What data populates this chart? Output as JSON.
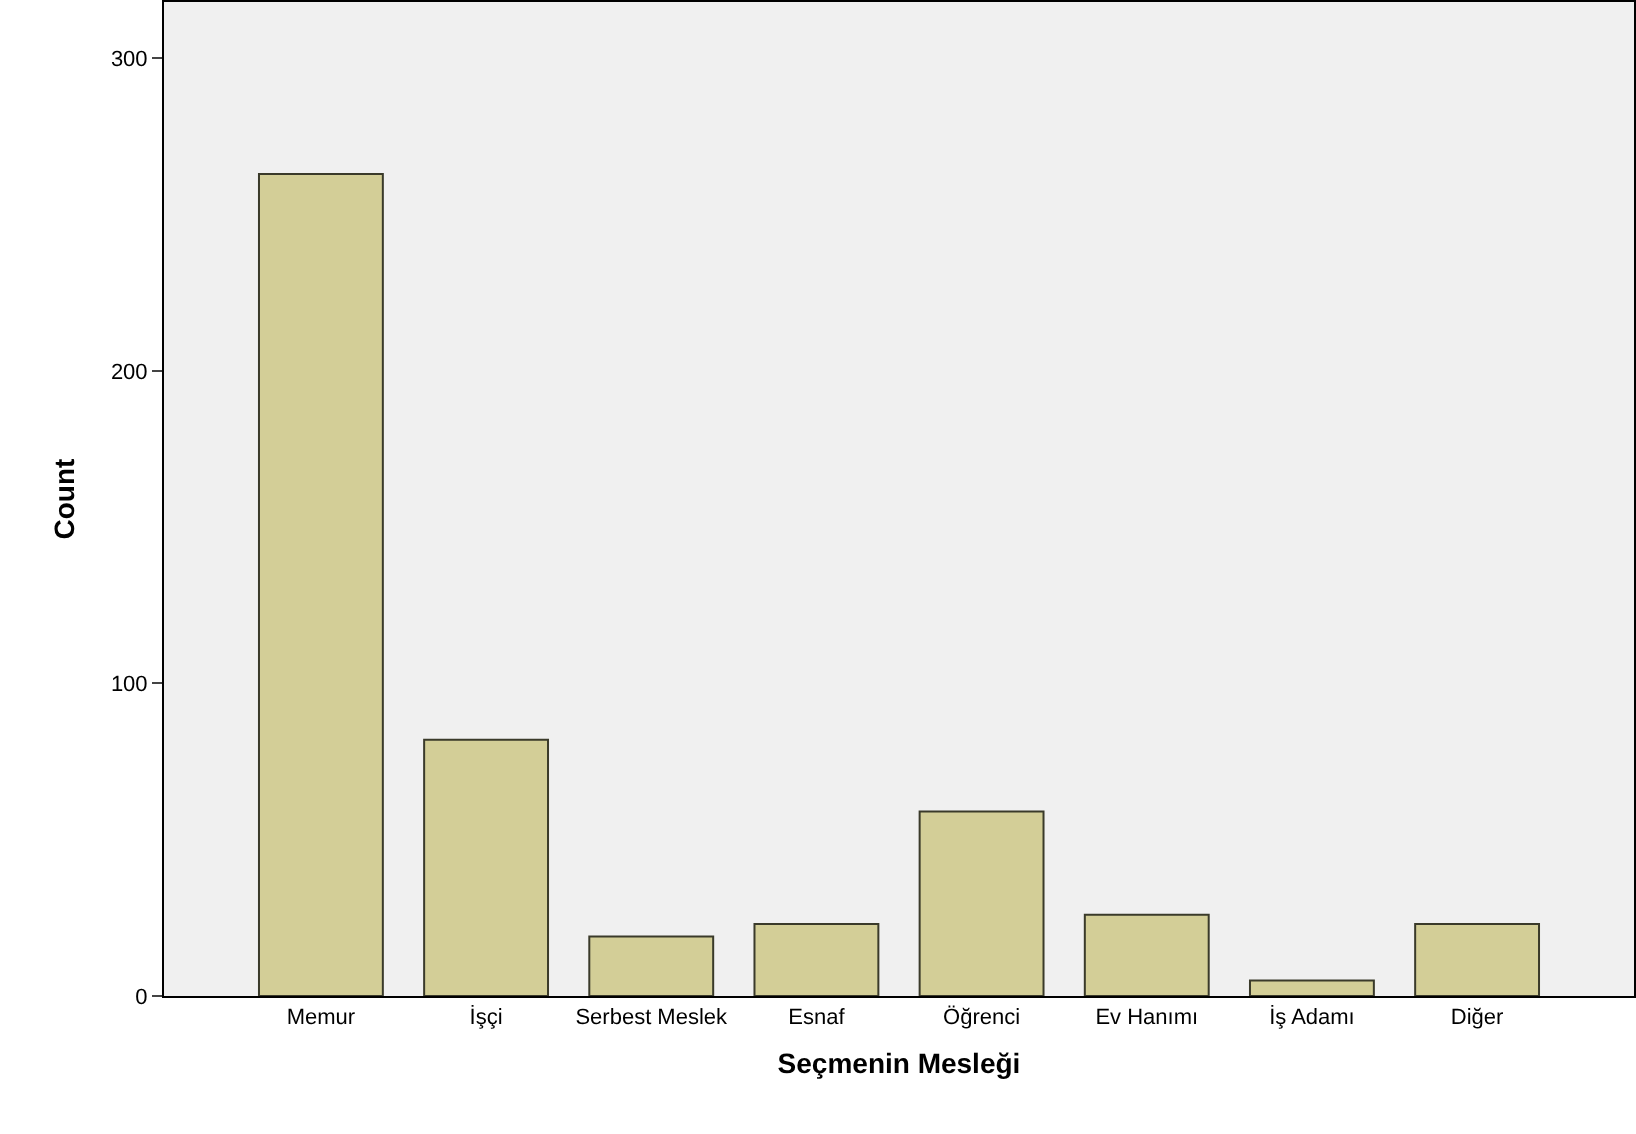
{
  "chart_data": {
    "type": "bar",
    "xlabel": "Seçmenin Mesleği",
    "ylabel": "Count",
    "categories": [
      "Memur",
      "İşçi",
      "Serbest Meslek",
      "Esnaf",
      "Öğrenci",
      "Ev Hanımı",
      "İş Adamı",
      "Diğer"
    ],
    "values": [
      263,
      82,
      19,
      23,
      59,
      26,
      5,
      23
    ],
    "color": "#d3ce97",
    "ylim": [
      0,
      318
    ],
    "yticks": [
      0,
      100,
      200,
      300
    ],
    "grid": false
  }
}
